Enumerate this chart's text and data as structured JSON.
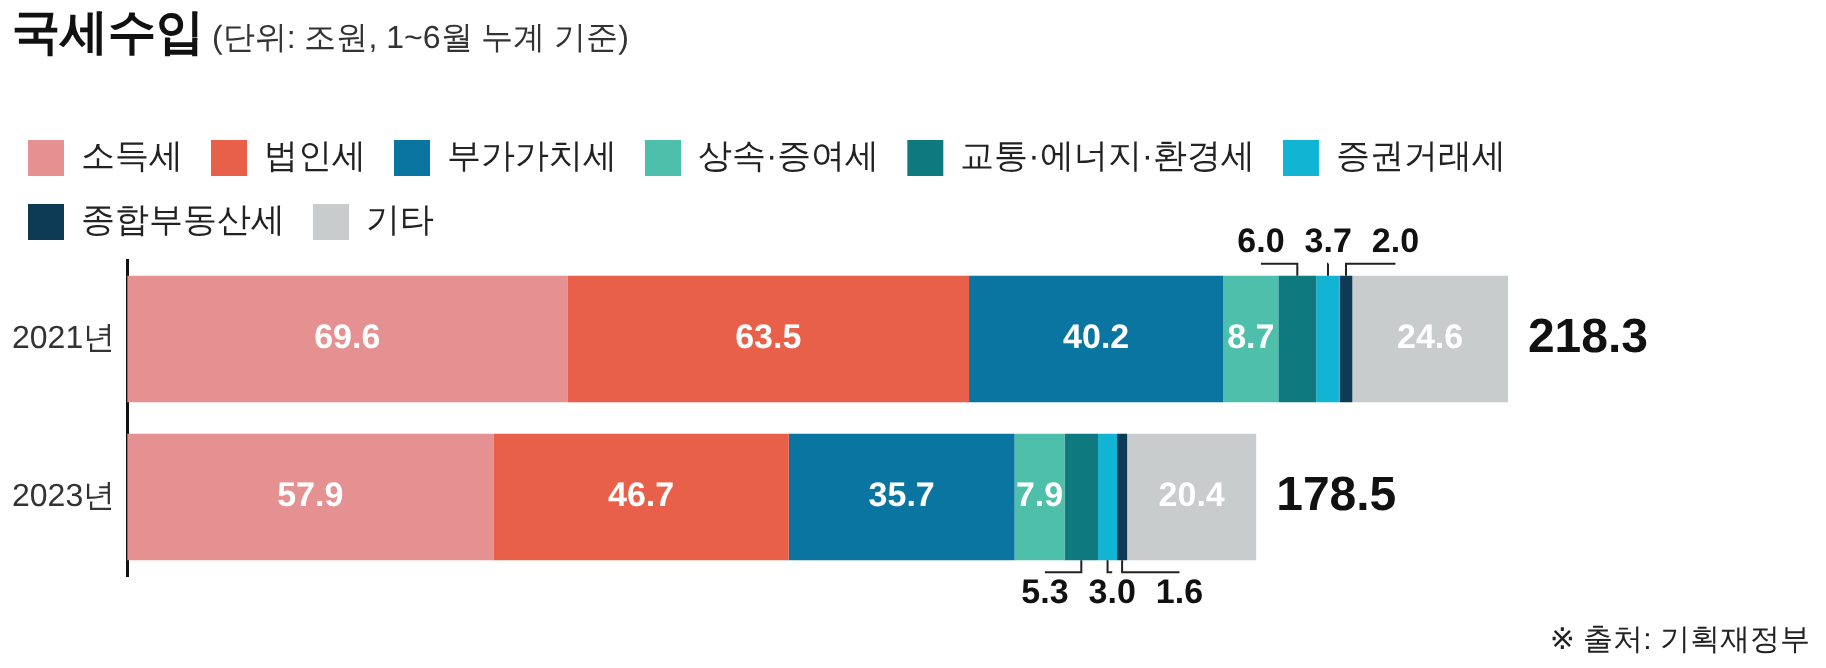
{
  "chart_data": {
    "type": "bar",
    "orientation": "horizontal",
    "stacked": true,
    "title": "국세수입",
    "subtitle": "(단위: 조원, 1~6월 누계 기준)",
    "categories": [
      "2021년",
      "2023년"
    ],
    "series": [
      {
        "name": "소득세",
        "color": "#e59191",
        "values": [
          69.6,
          57.9
        ],
        "value_labels": [
          "69.6",
          "57.9"
        ]
      },
      {
        "name": "법인세",
        "color": "#e8604a",
        "values": [
          63.5,
          46.7
        ],
        "value_labels": [
          "63.5",
          "46.7"
        ]
      },
      {
        "name": "부가가치세",
        "color": "#0a75a0",
        "values": [
          40.2,
          35.7
        ],
        "value_labels": [
          "40.2",
          "35.7"
        ]
      },
      {
        "name": "상속·증여세",
        "color": "#4dbfaa",
        "values": [
          8.7,
          7.9
        ],
        "value_labels": [
          "8.7",
          "7.9"
        ]
      },
      {
        "name": "교통·에너지·환경세",
        "color": "#0e7a80",
        "values": [
          6.0,
          5.3
        ],
        "value_labels": [
          "6.0",
          "5.3"
        ]
      },
      {
        "name": "증권거래세",
        "color": "#12b4d4",
        "values": [
          3.7,
          3.0
        ],
        "value_labels": [
          "3.7",
          "3.0"
        ]
      },
      {
        "name": "종합부동산세",
        "color": "#0d3a55",
        "values": [
          2.0,
          1.6
        ],
        "value_labels": [
          "2.0",
          "1.6"
        ]
      },
      {
        "name": "기타",
        "color": "#c8cccc",
        "values": [
          24.6,
          20.4
        ],
        "value_labels": [
          "24.6",
          "20.4"
        ]
      }
    ],
    "totals": [
      "218.3",
      "178.5"
    ],
    "legend": "top left",
    "grid": false,
    "annotations": [
      "※ 출처: 기획재정부"
    ]
  }
}
